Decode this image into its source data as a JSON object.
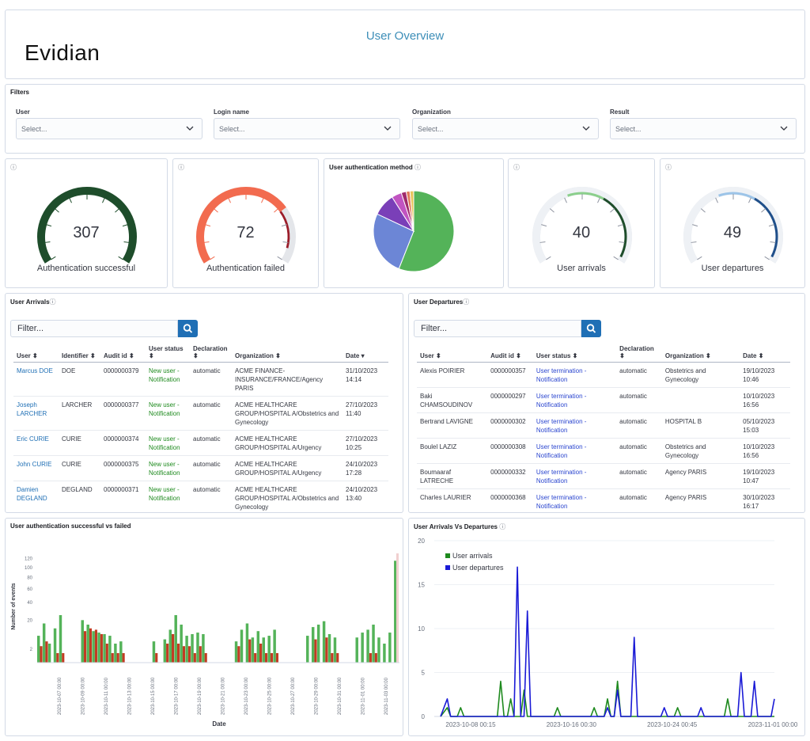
{
  "header": {
    "logo": "Evidian",
    "title": "User Overview"
  },
  "filters": {
    "title": "Filters",
    "items": [
      {
        "label": "User",
        "placeholder": "Select..."
      },
      {
        "label": "Login name",
        "placeholder": "Select..."
      },
      {
        "label": "Organization",
        "placeholder": "Select..."
      },
      {
        "label": "Result",
        "placeholder": "Select..."
      }
    ]
  },
  "gauges": [
    {
      "value": "307",
      "label": "Authentication successful",
      "color": "#1e4d2b",
      "fraction": 1.0
    },
    {
      "value": "72",
      "label": "Authentication failed",
      "color": "#f26b4f",
      "fraction": 0.72
    },
    {
      "value": "40",
      "label": "User arrivals",
      "color": "#1e4d2b",
      "fraction": 1.0
    },
    {
      "value": "49",
      "label": "User departures",
      "color": "#1f4f8a",
      "fraction": 1.0
    }
  ],
  "auth_method": {
    "title": "User authentication method"
  },
  "arrivals": {
    "title": "User Arrivals",
    "filter_placeholder": "Filter...",
    "columns": [
      "User",
      "Identifier",
      "Audit id",
      "User status",
      "Declaration",
      "Organization",
      "Date"
    ],
    "rows": [
      {
        "user": "Marcus DOE",
        "identifier": "DOE",
        "audit": "0000000379",
        "status": "New user - Notification",
        "declaration": "automatic",
        "organization": "ACME FINANCE-INSURANCE/FRANCE/Agency PARIS",
        "date": "31/10/2023 14:14"
      },
      {
        "user": "Joseph LARCHER",
        "identifier": "LARCHER",
        "audit": "0000000377",
        "status": "New user - Notification",
        "declaration": "automatic",
        "organization": "ACME HEALTHCARE GROUP/HOSPITAL A/Obstetrics and Gynecology",
        "date": "27/10/2023 11:40"
      },
      {
        "user": "Eric CURIE",
        "identifier": "CURIE",
        "audit": "0000000374",
        "status": "New user - Notification",
        "declaration": "automatic",
        "organization": "ACME HEALTHCARE GROUP/HOSPITAL A/Urgency",
        "date": "27/10/2023 10:25"
      },
      {
        "user": "John CURIE",
        "identifier": "CURIE",
        "audit": "0000000375",
        "status": "New user - Notification",
        "declaration": "automatic",
        "organization": "ACME HEALTHCARE GROUP/HOSPITAL A/Urgency",
        "date": "24/10/2023 17:28"
      },
      {
        "user": "Damien DEGLAND",
        "identifier": "DEGLAND",
        "audit": "0000000371",
        "status": "New user - Notification",
        "declaration": "automatic",
        "organization": "ACME HEALTHCARE GROUP/HOSPITAL A/Obstetrics and Gynecology",
        "date": "24/10/2023 13:40"
      }
    ]
  },
  "departures": {
    "title": "User Departures",
    "filter_placeholder": "Filter...",
    "columns": [
      "User",
      "Audit id",
      "User status",
      "Declaration",
      "Organization",
      "Date"
    ],
    "rows": [
      {
        "user": "Alexis POIRIER",
        "audit": "0000000357",
        "status": "User termination - Notification",
        "declaration": "automatic",
        "organization": "Obstetrics and Gynecology",
        "date": "19/10/2023 10:46"
      },
      {
        "user": "Baki CHAMSOUDINOV",
        "audit": "0000000297",
        "status": "User termination - Notification",
        "declaration": "automatic",
        "organization": "",
        "date": "10/10/2023 16:56"
      },
      {
        "user": "Bertrand LAVIGNE",
        "audit": "0000000302",
        "status": "User termination - Notification",
        "declaration": "automatic",
        "organization": "HOSPITAL B",
        "date": "05/10/2023 15:03"
      },
      {
        "user": "Boulel LAZIZ",
        "audit": "0000000308",
        "status": "User termination - Notification",
        "declaration": "automatic",
        "organization": "Obstetrics and Gynecology",
        "date": "10/10/2023 16:56"
      },
      {
        "user": "Boumaaraf LATRECHE",
        "audit": "0000000332",
        "status": "User termination - Notification",
        "declaration": "automatic",
        "organization": "Agency PARIS",
        "date": "19/10/2023 10:47"
      },
      {
        "user": "Charles LAURIER",
        "audit": "0000000368",
        "status": "User termination - Notification",
        "declaration": "automatic",
        "organization": "Agency PARIS",
        "date": "30/10/2023 16:17"
      }
    ]
  },
  "colors": {
    "success": "#54b359",
    "failed": "#c23b22",
    "arrivals": "#1e8a1e",
    "departures": "#1a1ad6",
    "accent": "#1f6fb5"
  },
  "chart_data": [
    {
      "type": "pie",
      "title": "User authentication method",
      "values": [
        56,
        26,
        9,
        4,
        2,
        1.5,
        1.5
      ],
      "colors": [
        "#54b359",
        "#6c86d6",
        "#7a3fb8",
        "#c154c1",
        "#a02b6d",
        "#e07b5a",
        "#e8c55c"
      ]
    },
    {
      "type": "bar",
      "title": "User authentication successful vs failed",
      "xlabel": "Date",
      "ylabel": "Number of events",
      "ylim": [
        0,
        140
      ],
      "yticks": [
        2,
        20,
        40,
        60,
        80,
        100,
        120
      ],
      "xticks": [
        "2023-10-07 00:00",
        "2023-10-09 00:00",
        "2023-10-11 00:00",
        "2023-10-13 00:00",
        "2023-10-15 00:00",
        "2023-10-17 00:00",
        "2023-10-19 00:00",
        "2023-10-21 00:00",
        "2023-10-23 00:00",
        "2023-10-25 00:00",
        "2023-10-27 00:00",
        "2023-10-29 00:00",
        "2023-10-31 00:00",
        "2023-11-01 00:00",
        "2023-11-03 00:00"
      ],
      "series": [
        {
          "name": "successful",
          "values": [
            8,
            17,
            4,
            13,
            25,
            0,
            0,
            0,
            20,
            16,
            11,
            10,
            9,
            8,
            4,
            5,
            0,
            0,
            0,
            0,
            0,
            5,
            0,
            6,
            12,
            25,
            16,
            8,
            9,
            10,
            9,
            0,
            0,
            0,
            0,
            0,
            5,
            12,
            17,
            7,
            11,
            7,
            8,
            12,
            0,
            0,
            0,
            0,
            0,
            8,
            14,
            16,
            19,
            9,
            7,
            0,
            0,
            0,
            7,
            10,
            12,
            16,
            7,
            4,
            10,
            115
          ]
        },
        {
          "name": "failed",
          "values": [
            3,
            5,
            0,
            1,
            1,
            0,
            0,
            0,
            11,
            13,
            12,
            9,
            4,
            1,
            1,
            1,
            0,
            0,
            0,
            0,
            0,
            1,
            0,
            4,
            9,
            4,
            3,
            3,
            1,
            3,
            1,
            0,
            0,
            0,
            0,
            0,
            3,
            0,
            6,
            1,
            4,
            1,
            1,
            1,
            0,
            0,
            0,
            0,
            0,
            0,
            6,
            0,
            7,
            1,
            1,
            0,
            0,
            0,
            0,
            0,
            1,
            1,
            0,
            0,
            0,
            0
          ]
        }
      ]
    },
    {
      "type": "line",
      "title": "User Arrivals Vs Departures",
      "ylim": [
        0,
        20
      ],
      "yticks": [
        0,
        5,
        10,
        15,
        20
      ],
      "xticks": [
        "2023-10-08 00:15",
        "2023-10-16 00:30",
        "2023-10-24 00:45",
        "2023-11-01 00:00"
      ],
      "series": [
        {
          "name": "User arrivals",
          "points": [
            [
              0.0,
              0
            ],
            [
              0.02,
              1
            ],
            [
              0.03,
              0
            ],
            [
              0.05,
              0
            ],
            [
              0.06,
              1
            ],
            [
              0.07,
              0
            ],
            [
              0.17,
              0
            ],
            [
              0.18,
              4
            ],
            [
              0.19,
              0
            ],
            [
              0.2,
              0
            ],
            [
              0.21,
              2
            ],
            [
              0.22,
              0
            ],
            [
              0.24,
              0
            ],
            [
              0.25,
              3
            ],
            [
              0.26,
              0
            ],
            [
              0.34,
              0
            ],
            [
              0.35,
              1
            ],
            [
              0.36,
              0
            ],
            [
              0.45,
              0
            ],
            [
              0.46,
              1
            ],
            [
              0.47,
              0
            ],
            [
              0.49,
              0
            ],
            [
              0.5,
              2
            ],
            [
              0.51,
              0
            ],
            [
              0.52,
              0
            ],
            [
              0.53,
              4
            ],
            [
              0.54,
              0
            ],
            [
              0.7,
              0
            ],
            [
              0.71,
              1
            ],
            [
              0.72,
              0
            ],
            [
              0.85,
              0
            ],
            [
              0.86,
              2
            ],
            [
              0.87,
              0
            ],
            [
              1.0,
              0
            ]
          ]
        },
        {
          "name": "User departures",
          "points": [
            [
              0.0,
              0
            ],
            [
              0.02,
              2
            ],
            [
              0.03,
              0
            ],
            [
              0.22,
              0
            ],
            [
              0.23,
              17
            ],
            [
              0.24,
              0
            ],
            [
              0.25,
              0
            ],
            [
              0.26,
              12
            ],
            [
              0.27,
              0
            ],
            [
              0.49,
              0
            ],
            [
              0.5,
              1
            ],
            [
              0.51,
              0
            ],
            [
              0.52,
              0
            ],
            [
              0.53,
              3
            ],
            [
              0.54,
              0
            ],
            [
              0.57,
              0
            ],
            [
              0.58,
              9
            ],
            [
              0.59,
              0
            ],
            [
              0.66,
              0
            ],
            [
              0.67,
              1
            ],
            [
              0.68,
              0
            ],
            [
              0.77,
              0
            ],
            [
              0.78,
              1
            ],
            [
              0.79,
              0
            ],
            [
              0.89,
              0
            ],
            [
              0.9,
              5
            ],
            [
              0.91,
              0
            ],
            [
              0.93,
              0
            ],
            [
              0.94,
              4
            ],
            [
              0.95,
              0
            ],
            [
              0.99,
              0
            ],
            [
              1.0,
              2
            ]
          ]
        }
      ]
    }
  ]
}
